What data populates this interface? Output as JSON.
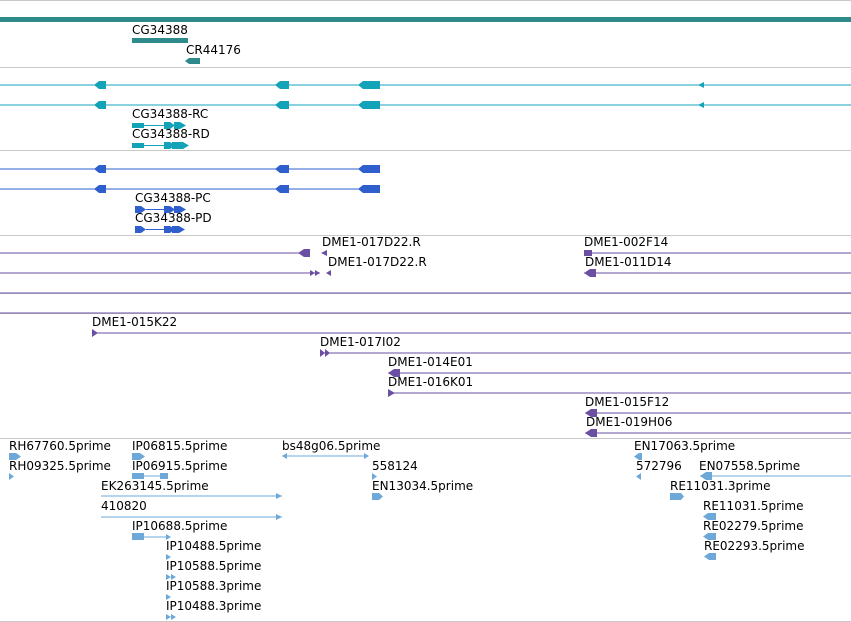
{
  "tracks": {
    "gene": {
      "color": "#2f8a8c",
      "labels": [
        "CG34388",
        "CR44176"
      ]
    },
    "transcripts": {
      "color": "#13a3b8",
      "labels": [
        "CG34388-RC",
        "CG34388-RD"
      ]
    },
    "proteins": {
      "color": "#2e5fcd",
      "labels": [
        "CG34388-PC",
        "CG34388-PD"
      ]
    },
    "bac_clones": {
      "color": "#6a4fa3",
      "labels": [
        "DME1-017D22.R",
        "DME1-017D22.R",
        "DME1-002F14",
        "DME1-011D14",
        "DME1-015K22",
        "DME1-017I02",
        "DME1-014E01",
        "DME1-016K01",
        "DME1-015F12",
        "DME1-019H06"
      ]
    },
    "est": {
      "color": "#6ea8d8",
      "labels": [
        "RH67760.5prime",
        "RH09325.5prime",
        "IP06815.5prime",
        "IP06915.5prime",
        "bs48g06.5prime",
        "558124",
        "EN13034.5prime",
        "EK263145.5prime",
        "410820",
        "IP10688.5prime",
        "IP10488.5prime",
        "IP10588.5prime",
        "IP10588.3prime",
        "IP10488.3prime",
        "EN17063.5prime",
        "572796",
        "EN07558.5prime",
        "RE11031.3prime",
        "RE11031.5prime",
        "RE02279.5prime",
        "RE02293.5prime"
      ]
    }
  }
}
